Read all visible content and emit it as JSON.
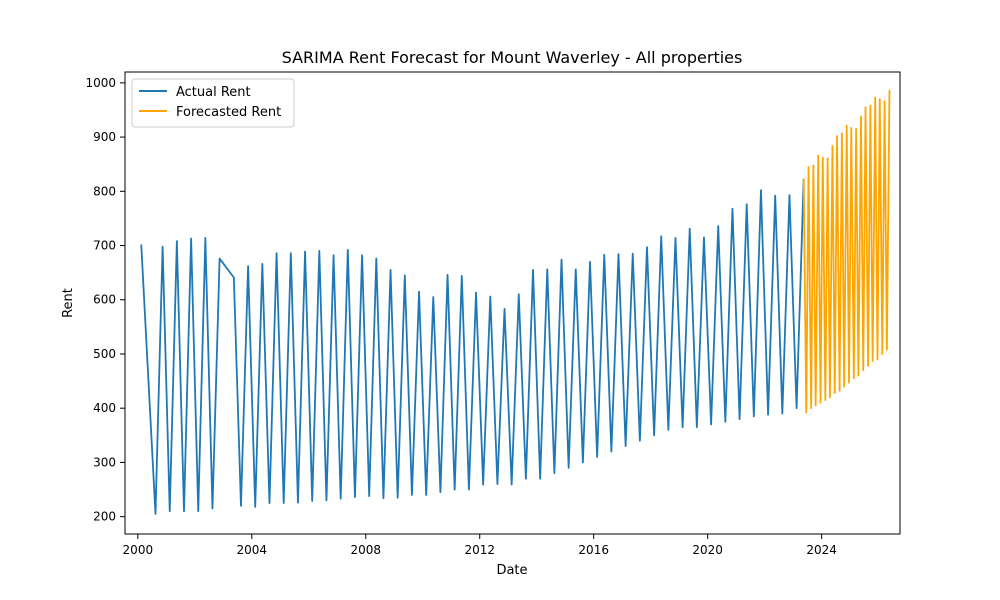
{
  "chart_data": {
    "type": "line",
    "title": "SARIMA Rent Forecast for Mount Waverley - All properties",
    "xlabel": "Date",
    "ylabel": "Rent",
    "xlim": [
      1999.55,
      2026.75
    ],
    "ylim": [
      168,
      1020
    ],
    "x_ticks": [
      2000,
      2004,
      2008,
      2012,
      2016,
      2020,
      2024
    ],
    "x_tick_labels": [
      "2000",
      "2004",
      "2008",
      "2012",
      "2016",
      "2020",
      "2024"
    ],
    "y_ticks": [
      200,
      300,
      400,
      500,
      600,
      700,
      800,
      900,
      1000
    ],
    "y_tick_labels": [
      "200",
      "300",
      "400",
      "500",
      "600",
      "700",
      "800",
      "900",
      "1000"
    ],
    "grid": false,
    "legend_position": "top-left",
    "series": [
      {
        "name": "Actual Rent",
        "color": "#1f77b4",
        "points": [
          [
            2000.12,
            702
          ],
          [
            2000.62,
            205
          ],
          [
            2000.87,
            698
          ],
          [
            2001.12,
            210
          ],
          [
            2001.37,
            708
          ],
          [
            2001.62,
            210
          ],
          [
            2001.87,
            713
          ],
          [
            2002.12,
            210
          ],
          [
            2002.37,
            714
          ],
          [
            2002.62,
            215
          ],
          [
            2002.87,
            676
          ],
          [
            2003.37,
            641
          ],
          [
            2003.62,
            220
          ],
          [
            2003.87,
            662
          ],
          [
            2004.12,
            218
          ],
          [
            2004.37,
            666
          ],
          [
            2004.62,
            225
          ],
          [
            2004.87,
            686
          ],
          [
            2005.12,
            225
          ],
          [
            2005.37,
            686
          ],
          [
            2005.62,
            226
          ],
          [
            2005.87,
            689
          ],
          [
            2006.12,
            229
          ],
          [
            2006.37,
            690
          ],
          [
            2006.62,
            230
          ],
          [
            2006.87,
            682
          ],
          [
            2007.12,
            233
          ],
          [
            2007.37,
            692
          ],
          [
            2007.62,
            236
          ],
          [
            2007.87,
            682
          ],
          [
            2008.12,
            238
          ],
          [
            2008.37,
            676
          ],
          [
            2008.62,
            234
          ],
          [
            2008.87,
            655
          ],
          [
            2009.12,
            235
          ],
          [
            2009.37,
            645
          ],
          [
            2009.62,
            240
          ],
          [
            2009.87,
            615
          ],
          [
            2010.12,
            240
          ],
          [
            2010.37,
            605
          ],
          [
            2010.62,
            245
          ],
          [
            2010.87,
            646
          ],
          [
            2011.12,
            250
          ],
          [
            2011.37,
            644
          ],
          [
            2011.62,
            250
          ],
          [
            2011.87,
            613
          ],
          [
            2012.12,
            259
          ],
          [
            2012.37,
            606
          ],
          [
            2012.62,
            260
          ],
          [
            2012.87,
            583
          ],
          [
            2013.12,
            259
          ],
          [
            2013.37,
            610
          ],
          [
            2013.62,
            270
          ],
          [
            2013.87,
            655
          ],
          [
            2014.12,
            270
          ],
          [
            2014.37,
            656
          ],
          [
            2014.62,
            280
          ],
          [
            2014.87,
            674
          ],
          [
            2015.12,
            290
          ],
          [
            2015.37,
            656
          ],
          [
            2015.62,
            300
          ],
          [
            2015.87,
            670
          ],
          [
            2016.12,
            310
          ],
          [
            2016.37,
            683
          ],
          [
            2016.62,
            320
          ],
          [
            2016.87,
            684
          ],
          [
            2017.12,
            330
          ],
          [
            2017.37,
            685
          ],
          [
            2017.62,
            340
          ],
          [
            2017.87,
            697
          ],
          [
            2018.12,
            350
          ],
          [
            2018.37,
            717
          ],
          [
            2018.62,
            360
          ],
          [
            2018.87,
            714
          ],
          [
            2019.12,
            365
          ],
          [
            2019.37,
            731
          ],
          [
            2019.62,
            365
          ],
          [
            2019.87,
            715
          ],
          [
            2020.12,
            370
          ],
          [
            2020.37,
            736
          ],
          [
            2020.62,
            375
          ],
          [
            2020.87,
            768
          ],
          [
            2021.12,
            380
          ],
          [
            2021.37,
            776
          ],
          [
            2021.62,
            385
          ],
          [
            2021.87,
            802
          ],
          [
            2022.12,
            388
          ],
          [
            2022.37,
            792
          ],
          [
            2022.62,
            390
          ],
          [
            2022.87,
            793
          ],
          [
            2023.12,
            400
          ],
          [
            2023.37,
            823
          ]
        ]
      },
      {
        "name": "Forecasted Rent",
        "color": "#ffa500",
        "points": [
          [
            2023.37,
            823
          ],
          [
            2023.46,
            392
          ],
          [
            2023.54,
            845
          ],
          [
            2023.63,
            400
          ],
          [
            2023.71,
            848
          ],
          [
            2023.79,
            405
          ],
          [
            2023.88,
            866
          ],
          [
            2023.96,
            410
          ],
          [
            2024.04,
            862
          ],
          [
            2024.13,
            415
          ],
          [
            2024.21,
            861
          ],
          [
            2024.29,
            420
          ],
          [
            2024.38,
            884
          ],
          [
            2024.46,
            428
          ],
          [
            2024.54,
            902
          ],
          [
            2024.63,
            432
          ],
          [
            2024.71,
            907
          ],
          [
            2024.79,
            440
          ],
          [
            2024.88,
            921
          ],
          [
            2024.96,
            447
          ],
          [
            2025.04,
            917
          ],
          [
            2025.13,
            455
          ],
          [
            2025.21,
            915
          ],
          [
            2025.29,
            460
          ],
          [
            2025.38,
            938
          ],
          [
            2025.46,
            470
          ],
          [
            2025.54,
            955
          ],
          [
            2025.63,
            478
          ],
          [
            2025.71,
            958
          ],
          [
            2025.79,
            487
          ],
          [
            2025.88,
            973
          ],
          [
            2025.96,
            490
          ],
          [
            2026.04,
            970
          ],
          [
            2026.13,
            500
          ],
          [
            2026.21,
            966
          ],
          [
            2026.29,
            508
          ],
          [
            2026.38,
            987
          ]
        ]
      }
    ]
  }
}
